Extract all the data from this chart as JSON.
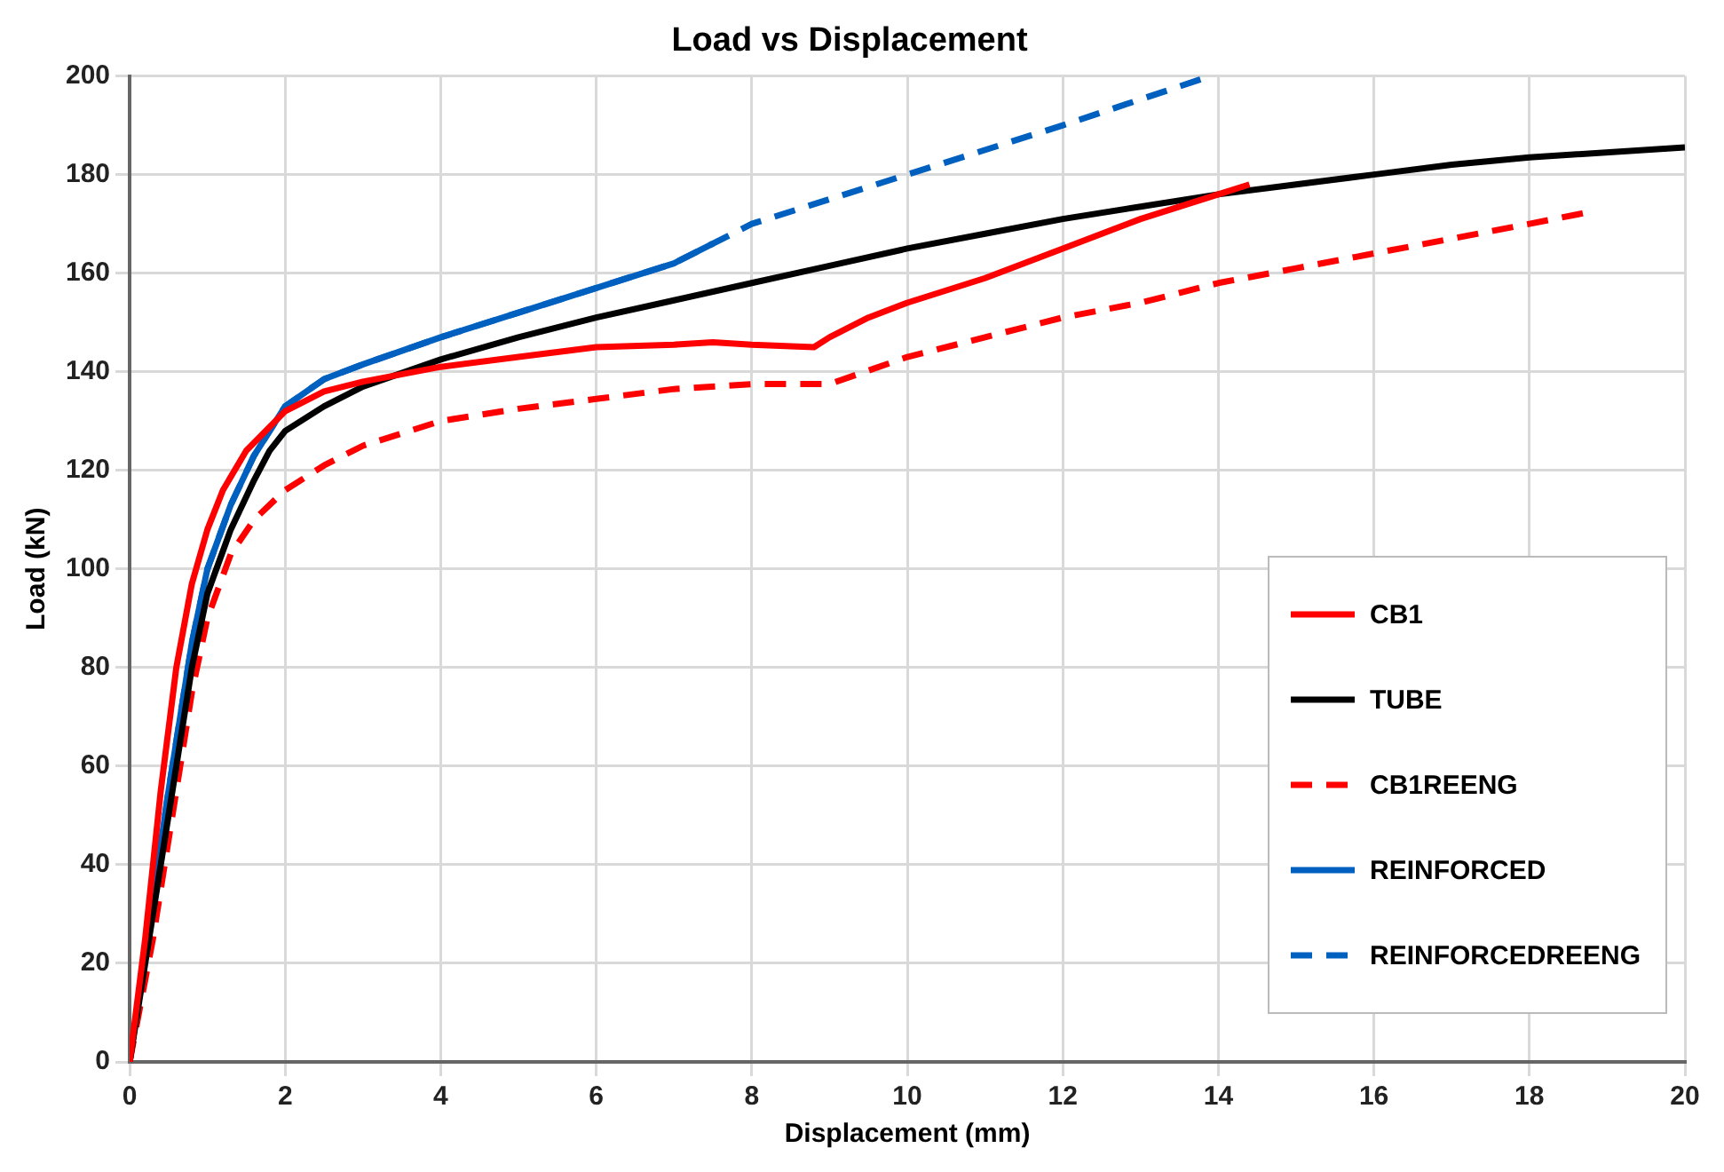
{
  "chart_data": {
    "type": "line",
    "title": "Load vs Displacement",
    "xlabel": "Displacement (mm)",
    "ylabel": "Load (kN)",
    "xlim": [
      0,
      20
    ],
    "xticks": [
      0,
      2,
      4,
      6,
      8,
      10,
      12,
      14,
      16,
      18,
      20
    ],
    "ylim": [
      0,
      200
    ],
    "yticks": [
      0,
      20,
      40,
      60,
      80,
      100,
      120,
      140,
      160,
      180,
      200
    ],
    "grid": true,
    "legend": "right",
    "marker": "none",
    "series": [
      {
        "name": "CB1",
        "color": "#ff0000",
        "line_style": "solid",
        "x": [
          0,
          0.2,
          0.4,
          0.6,
          0.8,
          1.0,
          1.2,
          1.5,
          2,
          2.5,
          3,
          4,
          5,
          6,
          7,
          7.5,
          8,
          8.8,
          9,
          9.5,
          10,
          11,
          12,
          13,
          14,
          14.4
        ],
        "values": [
          0,
          25,
          55,
          80,
          97,
          108,
          116,
          124,
          132,
          136,
          138,
          141,
          143,
          145,
          145.5,
          146,
          145.5,
          145,
          147,
          151,
          154,
          159,
          165,
          171,
          176,
          178
        ]
      },
      {
        "name": "TUBE",
        "color": "#000000",
        "line_style": "solid",
        "x": [
          0,
          0.2,
          0.5,
          0.8,
          1.0,
          1.3,
          1.6,
          1.8,
          2,
          2.5,
          3,
          4,
          5,
          6,
          7,
          8,
          9,
          10,
          11,
          12,
          13,
          14,
          15,
          16,
          17,
          18,
          20
        ],
        "values": [
          0,
          20,
          50,
          80,
          95,
          108,
          118,
          124,
          128,
          133,
          137,
          142.5,
          147,
          151,
          154.5,
          158,
          161.5,
          165,
          168,
          171,
          173.5,
          176,
          178,
          180,
          182,
          183.5,
          185.5
        ]
      },
      {
        "name": "CB1REENG",
        "color": "#ff0000",
        "line_style": "dashed",
        "x": [
          0,
          0.3,
          0.6,
          0.8,
          1.0,
          1.3,
          1.6,
          2,
          2.5,
          3,
          4,
          5,
          6,
          7,
          8,
          9,
          10,
          11,
          12,
          13,
          14,
          15,
          16,
          17,
          18,
          18.8
        ],
        "values": [
          0,
          25,
          55,
          75,
          90,
          103,
          110,
          116,
          121,
          125,
          130,
          132.5,
          134.5,
          136.5,
          137.5,
          137.5,
          143,
          147,
          151,
          154,
          158,
          161,
          164,
          167,
          170,
          172.5
        ]
      },
      {
        "name": "REINFORCED",
        "color": "#0060c0",
        "line_style": "solid",
        "x": [
          0,
          0.2,
          0.5,
          0.8,
          1.0,
          1.3,
          1.6,
          2,
          2.5,
          3,
          4,
          5,
          6,
          7,
          7.5
        ],
        "values": [
          0,
          22,
          55,
          85,
          100,
          113,
          123,
          133,
          138.5,
          141.5,
          147,
          152,
          157,
          162,
          166
        ]
      },
      {
        "name": "REINFORCEDREENG",
        "color": "#0060c0",
        "line_style": "dashed",
        "x": [
          0,
          0.2,
          0.5,
          0.8,
          1.0,
          1.3,
          1.6,
          2,
          2.5,
          3,
          4,
          5,
          6,
          7,
          7.5,
          8,
          10,
          12,
          13.9
        ],
        "values": [
          0,
          22,
          55,
          85,
          100,
          113,
          123,
          133,
          138.5,
          141.5,
          147,
          152,
          157,
          162,
          166,
          170,
          180,
          190,
          200
        ]
      }
    ]
  }
}
